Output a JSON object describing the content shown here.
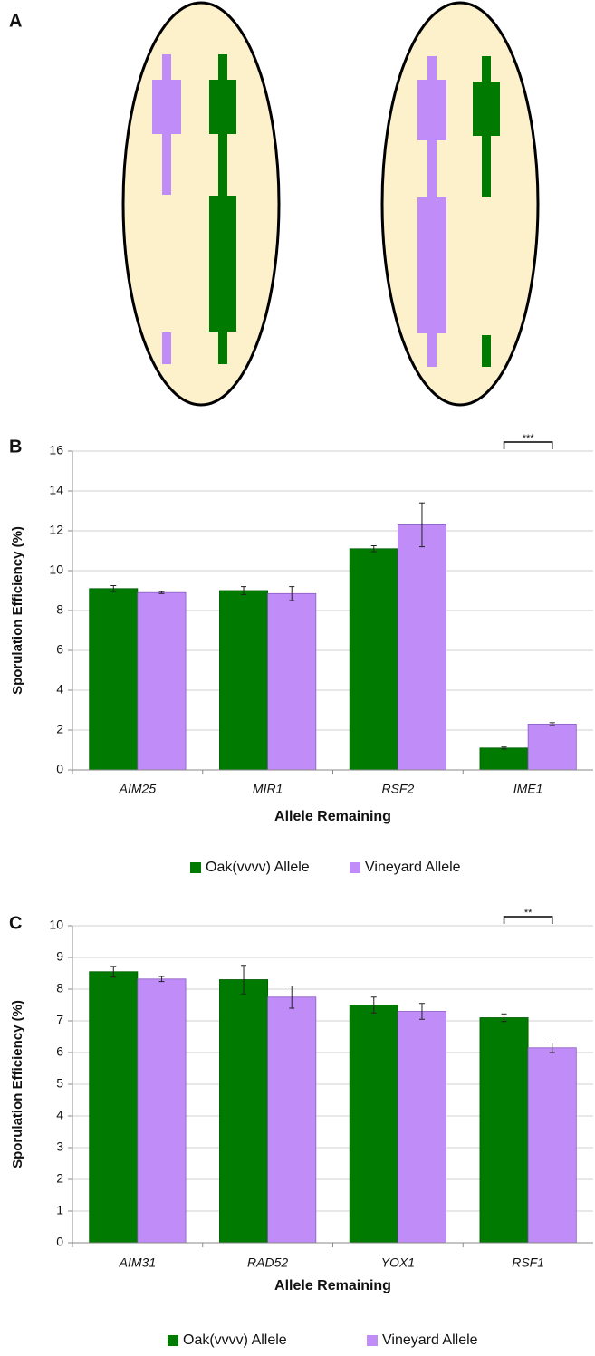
{
  "panel_labels": [
    "A",
    "B",
    "C"
  ],
  "chart_data": [
    {
      "type": "bar",
      "x_label": "Allele Remaining",
      "y_label": "Sporulation Efficiency (%)",
      "categories": [
        "AIM25",
        "MIR1",
        "RSF2",
        "IME1"
      ],
      "series": [
        {
          "name": "Oak(vvvv) Allele",
          "color": "#007a00",
          "values": [
            9.1,
            9.0,
            11.1,
            1.1
          ],
          "errors": [
            0.15,
            0.2,
            0.15,
            0.05
          ]
        },
        {
          "name": "Vineyard Allele",
          "color": "#c08cf8",
          "values": [
            8.9,
            8.85,
            12.3,
            2.3
          ],
          "errors": [
            0.05,
            0.35,
            1.1,
            0.07
          ]
        }
      ],
      "ylim": [
        0,
        16
      ],
      "yticks": [
        0,
        2,
        4,
        6,
        8,
        10,
        12,
        14,
        16
      ],
      "annotations": [
        "***"
      ]
    },
    {
      "type": "bar",
      "x_label": "Allele Remaining",
      "y_label": "Sporulation Efficiency (%)",
      "categories": [
        "AIM31",
        "RAD52",
        "YOX1",
        "RSF1"
      ],
      "series": [
        {
          "name": "Oak(vvvv) Allele",
          "color": "#007a00",
          "values": [
            8.55,
            8.3,
            7.5,
            7.1
          ],
          "errors": [
            0.17,
            0.45,
            0.25,
            0.12
          ]
        },
        {
          "name": "Vineyard Allele",
          "color": "#c08cf8",
          "values": [
            8.32,
            7.75,
            7.3,
            6.15
          ],
          "errors": [
            0.08,
            0.35,
            0.25,
            0.15
          ]
        }
      ],
      "ylim": [
        0,
        10
      ],
      "yticks": [
        0,
        1,
        2,
        3,
        4,
        5,
        6,
        7,
        8,
        9,
        10
      ],
      "annotations": [
        "**"
      ]
    }
  ]
}
